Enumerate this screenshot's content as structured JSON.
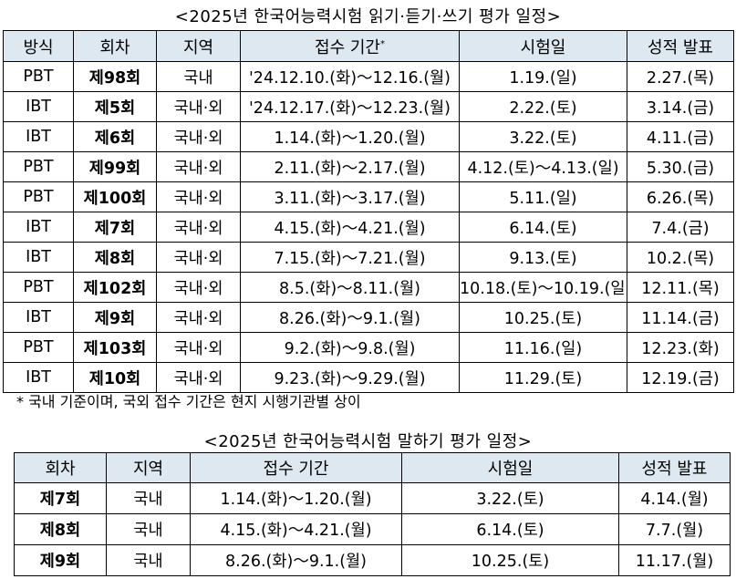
{
  "table1": {
    "title": "<2025년 한국어능력시험 읽기·듣기·쓰기 평가 일정>",
    "headers": {
      "method": "방식",
      "round": "회차",
      "region": "지역",
      "application": "접수 기간",
      "asterisk": "*",
      "exam_date": "시험일",
      "results": "성적 발표"
    },
    "rows": [
      {
        "method": "PBT",
        "round": "제98회",
        "region": "국내",
        "application": "'24.12.10.(화)～12.16.(월)",
        "exam": "1.19.(일)",
        "result": "2.27.(목)"
      },
      {
        "method": "IBT",
        "round": "제5회",
        "region": "국내·외",
        "application": "'24.12.17.(화)～12.23.(월)",
        "exam": "2.22.(토)",
        "result": "3.14.(금)"
      },
      {
        "method": "IBT",
        "round": "제6회",
        "region": "국내·외",
        "application": "1.14.(화)～1.20.(월)",
        "exam": "3.22.(토)",
        "result": "4.11.(금)"
      },
      {
        "method": "PBT",
        "round": "제99회",
        "region": "국내·외",
        "application": "2.11.(화)～2.17.(월)",
        "exam": "4.12.(토)～4.13.(일)",
        "result": "5.30.(금)"
      },
      {
        "method": "PBT",
        "round": "제100회",
        "region": "국내·외",
        "application": "3.11.(화)～3.17.(월)",
        "exam": "5.11.(일)",
        "result": "6.26.(목)"
      },
      {
        "method": "IBT",
        "round": "제7회",
        "region": "국내·외",
        "application": "4.15.(화)～4.21.(월)",
        "exam": "6.14.(토)",
        "result": "7.4.(금)"
      },
      {
        "method": "IBT",
        "round": "제8회",
        "region": "국내·외",
        "application": "7.15.(화)～7.21.(월)",
        "exam": "9.13.(토)",
        "result": "10.2.(목)"
      },
      {
        "method": "PBT",
        "round": "제102회",
        "region": "국내·외",
        "application": "8.5.(화)～8.11.(월)",
        "exam": "10.18.(토)～10.19.(일)",
        "result": "12.11.(목)"
      },
      {
        "method": "IBT",
        "round": "제9회",
        "region": "국내·외",
        "application": "8.26.(화)～9.1.(월)",
        "exam": "10.25.(토)",
        "result": "11.14.(금)"
      },
      {
        "method": "PBT",
        "round": "제103회",
        "region": "국내·외",
        "application": "9.2.(화)～9.8.(월)",
        "exam": "11.16.(일)",
        "result": "12.23.(화)"
      },
      {
        "method": "IBT",
        "round": "제10회",
        "region": "국내·외",
        "application": "9.23.(화)～9.29.(월)",
        "exam": "11.29.(토)",
        "result": "12.19.(금)"
      }
    ],
    "footnote": "* 국내 기준이며, 국외 접수 기간은 현지 시행기관별 상이"
  },
  "table2": {
    "title": "<2025년 한국어능력시험 말하기 평가 일정>",
    "headers": {
      "round": "회차",
      "region": "지역",
      "application": "접수 기간",
      "exam_date": "시험일",
      "results": "성적 발표"
    },
    "rows": [
      {
        "round": "제7회",
        "region": "국내",
        "application": "1.14.(화)～1.20.(월)",
        "exam": "3.22.(토)",
        "result": "4.14.(월)"
      },
      {
        "round": "제8회",
        "region": "국내",
        "application": "4.15.(화)～4.21.(월)",
        "exam": "6.14.(토)",
        "result": "7.7.(월)"
      },
      {
        "round": "제9회",
        "region": "국내",
        "application": "8.26.(화)～9.1.(월)",
        "exam": "10.25.(토)",
        "result": "11.17.(월)"
      }
    ]
  },
  "colors": {
    "header_background": "#dde8f1",
    "border": "#000000",
    "text": "#000000"
  }
}
